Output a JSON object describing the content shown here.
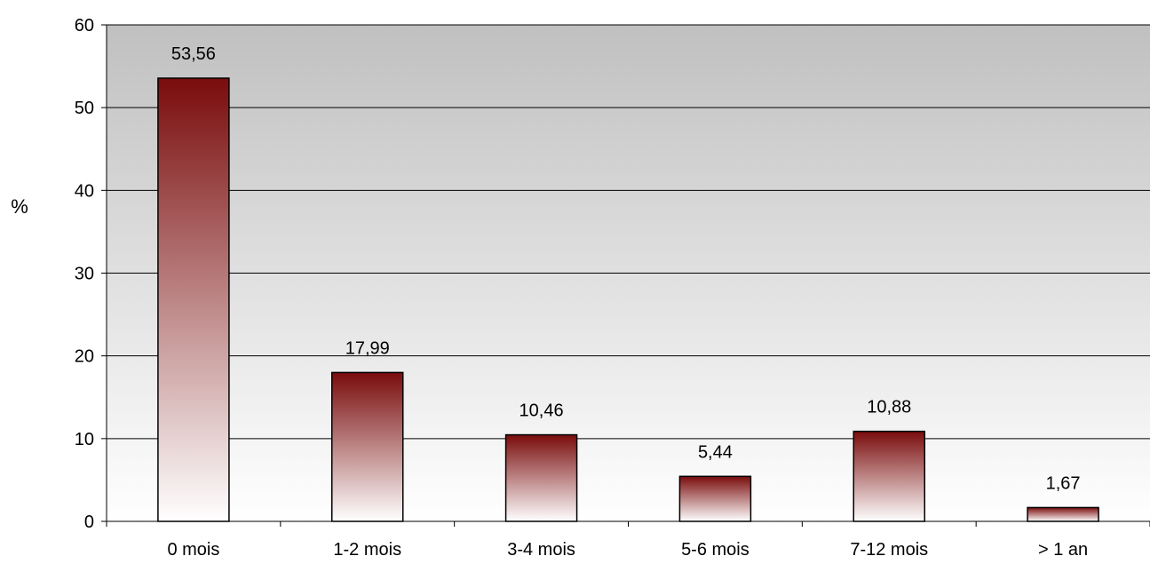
{
  "chart_data": {
    "type": "bar",
    "title": "",
    "xlabel": "",
    "ylabel": "%",
    "ylim": [
      0,
      60
    ],
    "yticks": [
      0,
      10,
      20,
      30,
      40,
      50,
      60
    ],
    "grid": true,
    "legend": "none",
    "categories": [
      "0 mois",
      "1-2 mois",
      "3-4 mois",
      "5-6 mois",
      "7-12 mois",
      "> 1 an"
    ],
    "values": [
      53.56,
      17.99,
      10.46,
      5.44,
      10.88,
      1.67
    ],
    "value_labels": [
      "53,56",
      "17,99",
      "10,46",
      "5,44",
      "10,88",
      "1,67"
    ],
    "colors": {
      "bar_top": "#7a0c0c",
      "bar_bottom": "#ffffff",
      "plot_top": "#c0c0c0",
      "plot_bottom": "#ffffff",
      "gridline": "#000000"
    }
  }
}
